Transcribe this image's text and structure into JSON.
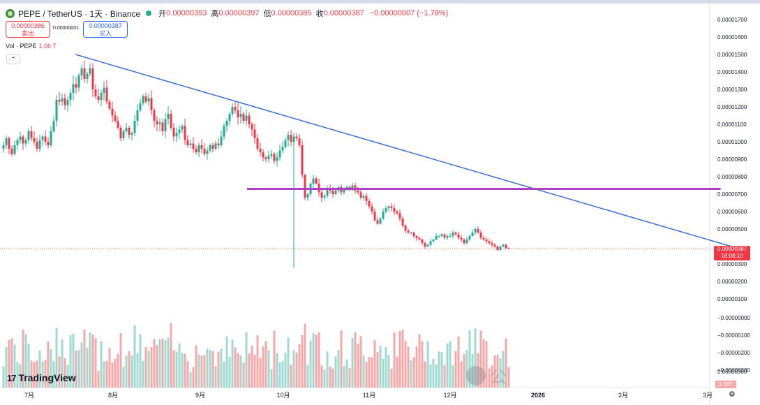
{
  "header": {
    "symbol": "PEPE / TetherUS · 1天 · Binance",
    "open_label": "开",
    "open": "0.00000393",
    "high_label": "高",
    "high": "0.00000397",
    "low_label": "低",
    "low": "0.00000385",
    "close_label": "收",
    "close": "0.00000387",
    "change": "−0.00000007 (−1.78%)"
  },
  "sell": {
    "price": "0.00000386",
    "label": "卖出"
  },
  "spread": "0.00000001",
  "buy": {
    "price": "0.00000387",
    "label": "买入"
  },
  "volume_legend": {
    "label": "Vol · PEPE",
    "value": "1.06 T"
  },
  "last_price": {
    "value": "0.00000387",
    "countdown": "18:08:10"
  },
  "last_volume": "1.06T",
  "logo": "TradingView",
  "watermark": "公",
  "colors": {
    "up": "#22ab94",
    "down": "#f23645",
    "trendline": "#3b6fd8",
    "hline": "#b03fc7"
  },
  "chart_data": {
    "type": "candlestick",
    "price_axis": [
      "0.00001700",
      "0.00001600",
      "0.00001500",
      "0.00001400",
      "0.00001300",
      "0.00001200",
      "0.00001100",
      "0.00001000",
      "0.00000900",
      "0.00000800",
      "0.00000700",
      "0.00000600",
      "0.00000500",
      "0.00000300",
      "0.00000200",
      "0.00000100"
    ],
    "volume_axis": [
      "−0.00000000",
      "−0.00000100",
      "−0.00000200",
      "−0.00000300"
    ],
    "volume_axis_top": "0.00000300",
    "time_axis": [
      "7月",
      "8月",
      "9月",
      "10月",
      "11月",
      "12月",
      "2026",
      "2月",
      "3月"
    ],
    "start_date": "2025-06-25",
    "price_ylim": [
      2.8e-06,
      1.73e-05
    ],
    "close": [
      9.8,
      10.2,
      9.6,
      9.3,
      9.8,
      10.1,
      10.3,
      9.9,
      10.1,
      10.6,
      10.2,
      10.0,
      9.6,
      10.1,
      10.3,
      10.0,
      9.8,
      10.6,
      11.2,
      12.4,
      12.3,
      12.5,
      12.1,
      12.4,
      12.8,
      13.3,
      13.1,
      13.8,
      14.2,
      13.6,
      13.9,
      14.2,
      13.0,
      12.6,
      12.4,
      12.8,
      13.1,
      12.3,
      11.9,
      11.5,
      11.2,
      10.8,
      10.2,
      10.6,
      10.8,
      10.4,
      10.5,
      11.2,
      11.8,
      12.2,
      12.6,
      12.3,
      12.5,
      11.8,
      11.2,
      11.0,
      11.1,
      10.6,
      11.3,
      11.6,
      10.8,
      10.3,
      10.5,
      10.7,
      10.9,
      10.1,
      9.8,
      9.9,
      9.6,
      9.4,
      9.8,
      9.6,
      9.3,
      9.5,
      9.8,
      9.6,
      9.9,
      9.8,
      10.3,
      10.9,
      11.2,
      11.6,
      12.0,
      11.8,
      11.4,
      11.6,
      11.2,
      11.5,
      11.0,
      10.7,
      10.2,
      9.6,
      9.4,
      9.1,
      9.0,
      9.2,
      9.3,
      8.9,
      9.1,
      9.5,
      9.7,
      10.1,
      10.4,
      10.0,
      10.3,
      10.2,
      9.8,
      8.1,
      6.8,
      7.0,
      7.6,
      7.9,
      7.6,
      7.1,
      6.8,
      6.9,
      7.3,
      7.2,
      7.0,
      7.2,
      7.4,
      7.1,
      7.3,
      7.4,
      7.3,
      7.5,
      7.2,
      7.1,
      6.8,
      6.9,
      6.6,
      6.3,
      6.0,
      5.5,
      5.3,
      5.6,
      6.0,
      6.2,
      6.3,
      6.2,
      6.0,
      5.9,
      5.6,
      5.2,
      4.9,
      4.8,
      4.8,
      4.6,
      4.5,
      4.4,
      4.2,
      4.0,
      4.1,
      4.3,
      4.4,
      4.6,
      4.6,
      4.7,
      4.5,
      4.6,
      4.6,
      4.8,
      4.7,
      4.5,
      4.4,
      4.2,
      4.4,
      4.6,
      4.8,
      5.0,
      4.8,
      4.5,
      4.4,
      4.3,
      4.2,
      4.1,
      4.0,
      3.8,
      4.0,
      4.1,
      3.9,
      3.87
    ],
    "extremes": [
      {
        "name": "major wick low",
        "date": "2025-10-10",
        "low": 2.8e-06
      }
    ],
    "drawings": [
      {
        "type": "trendline",
        "from": [
          "2025-07-22",
          1.5e-05
        ],
        "to": [
          "2026-03-20",
          4e-06
        ]
      },
      {
        "type": "horizontal_segment",
        "from": "2025-09-23",
        "to": "2026-03-16",
        "price": 7.3e-06
      }
    ]
  }
}
